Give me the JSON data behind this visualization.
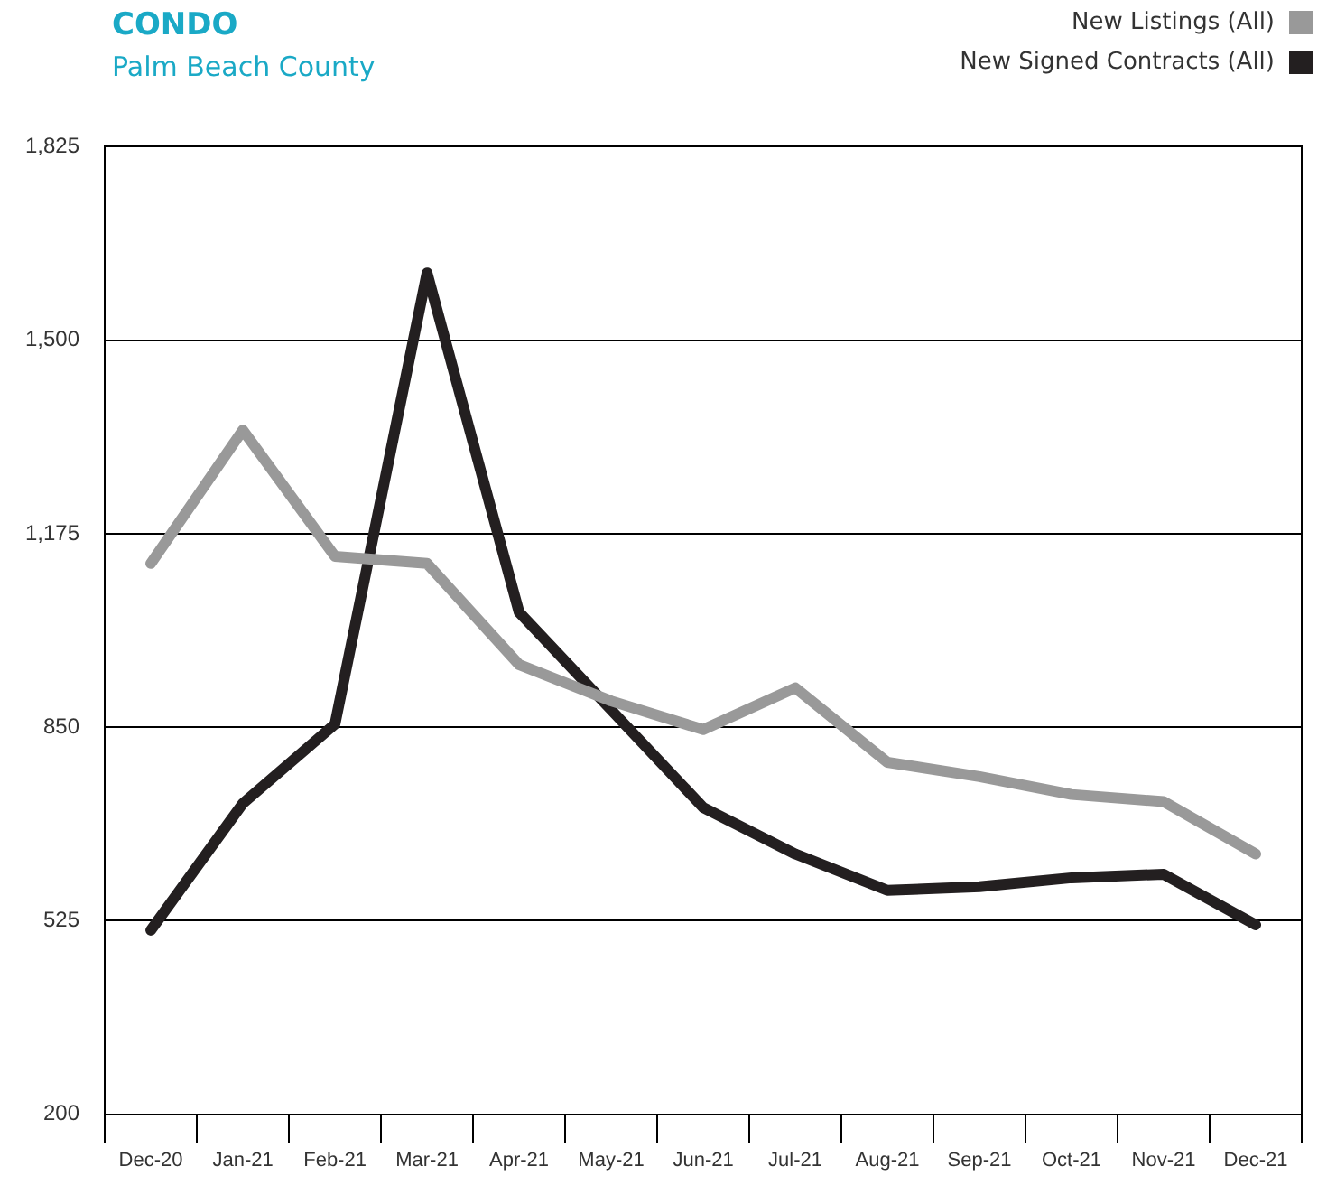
{
  "chart_data": {
    "type": "line",
    "title": "CONDO",
    "subtitle": "Palm Beach County",
    "categories": [
      "Dec-20",
      "Jan-21",
      "Feb-21",
      "Mar-21",
      "Apr-21",
      "May-21",
      "Jun-21",
      "Jul-21",
      "Aug-21",
      "Sep-21",
      "Oct-21",
      "Nov-21",
      "Dec-21"
    ],
    "series": [
      {
        "name": "New Listings (All)",
        "color": "#999999",
        "values": [
          1125,
          1349,
          1137,
          1125,
          955,
          894,
          846,
          916,
          791,
          767,
          737,
          725,
          637
        ]
      },
      {
        "name": "New Signed Contracts (All)",
        "color": "#231f20",
        "values": [
          509,
          722,
          855,
          1613,
          1043,
          879,
          715,
          637,
          576,
          582,
          597,
          603,
          518
        ]
      }
    ],
    "ylim": [
      200,
      1825
    ],
    "yticks": [
      200,
      525,
      850,
      {
        "value": 1175,
        "label": "1,175"
      },
      {
        "value": 1500,
        "label": "1,500"
      },
      {
        "value": 1825,
        "label": "1,825"
      }
    ],
    "grid": "y",
    "legend": "top right",
    "marker": "none",
    "line_style": "solid"
  }
}
